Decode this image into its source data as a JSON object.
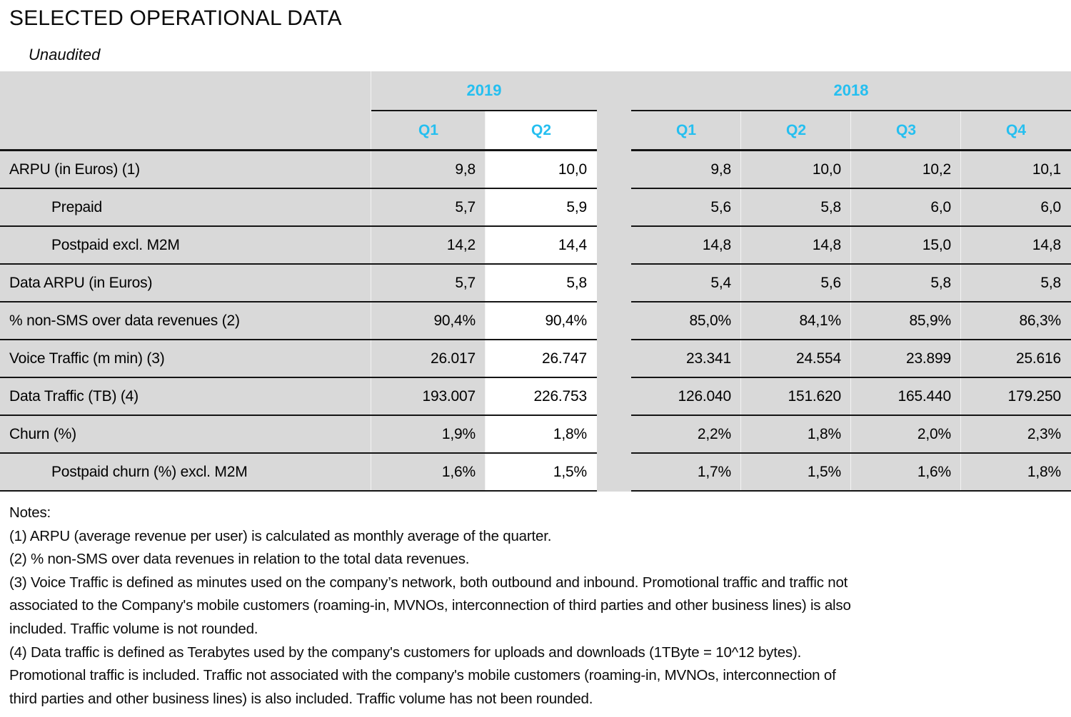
{
  "page": {
    "title": "SELECTED OPERATIONAL DATA",
    "subtitle": "Unaudited"
  },
  "colors": {
    "accent_cyan": "#25bff0",
    "band_gray": "#d9d9d9",
    "border_black": "#141414",
    "highlight_column_bg": "#ffffff"
  },
  "table": {
    "year_groups": [
      {
        "label": "2019",
        "quarters": [
          "Q1",
          "Q2"
        ]
      },
      {
        "label": "2018",
        "quarters": [
          "Q1",
          "Q2",
          "Q3",
          "Q4"
        ]
      }
    ],
    "rows": [
      {
        "label": "ARPU (in Euros) (1)",
        "y2019": [
          "9,8",
          "10,0"
        ],
        "y2018": [
          "9,8",
          "10,0",
          "10,2",
          "10,1"
        ]
      },
      {
        "label": "Prepaid",
        "y2019": [
          "5,7",
          "5,9"
        ],
        "y2018": [
          "5,6",
          "5,8",
          "6,0",
          "6,0"
        ]
      },
      {
        "label": "Postpaid excl. M2M",
        "y2019": [
          "14,2",
          "14,4"
        ],
        "y2018": [
          "14,8",
          "14,8",
          "15,0",
          "14,8"
        ]
      },
      {
        "label": "Data ARPU (in Euros)",
        "y2019": [
          "5,7",
          "5,8"
        ],
        "y2018": [
          "5,4",
          "5,6",
          "5,8",
          "5,8"
        ]
      },
      {
        "label": "% non-SMS over data revenues (2)",
        "y2019": [
          "90,4%",
          "90,4%"
        ],
        "y2018": [
          "85,0%",
          "84,1%",
          "85,9%",
          "86,3%"
        ]
      },
      {
        "label": "Voice Traffic (m min) (3)",
        "y2019": [
          "26.017",
          "26.747"
        ],
        "y2018": [
          "23.341",
          "24.554",
          "23.899",
          "25.616"
        ]
      },
      {
        "label": "Data Traffic (TB) (4)",
        "y2019": [
          "193.007",
          "226.753"
        ],
        "y2018": [
          "126.040",
          "151.620",
          "165.440",
          "179.250"
        ]
      },
      {
        "label": "Churn (%)",
        "y2019": [
          "1,9%",
          "1,8%"
        ],
        "y2018": [
          "2,2%",
          "1,8%",
          "2,0%",
          "2,3%"
        ]
      },
      {
        "label": "Postpaid churn (%) excl. M2M",
        "y2019": [
          "1,6%",
          "1,5%"
        ],
        "y2018": [
          "1,7%",
          "1,5%",
          "1,6%",
          "1,8%"
        ]
      }
    ]
  },
  "notes": {
    "lines": [
      "Notes:",
      "(1) ARPU (average revenue per user) is calculated as monthly average of the quarter.",
      "(2) % non-SMS over data revenues in relation to the total data revenues.",
      "(3) Voice Traffic is defined as minutes used on the company’s network, both outbound and inbound. Promotional traffic and traffic not",
      "associated to the Company's mobile customers (roaming-in, MVNOs, interconnection of third parties and other business lines) is also",
      "included. Traffic volume is not rounded.",
      "(4) Data traffic is defined as Terabytes used by the company's customers for uploads and downloads (1TByte = 10^12 bytes).",
      "Promotional traffic is included. Traffic not associated with the company's mobile customers (roaming-in, MVNOs, interconnection of",
      "third parties and other business lines) is also included. Traffic volume has not been rounded."
    ]
  }
}
